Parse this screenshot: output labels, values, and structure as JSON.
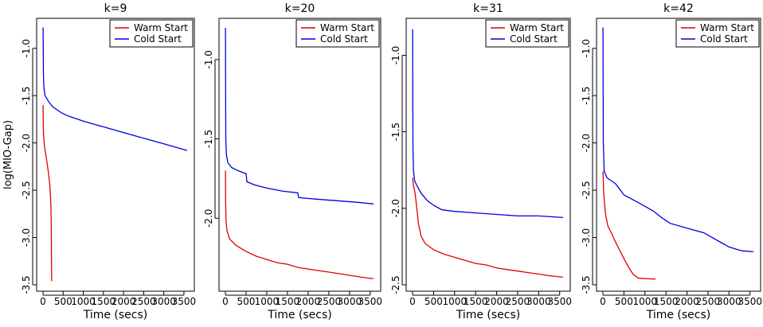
{
  "colors": {
    "warm": "#e00000",
    "cold": "#0000e0"
  },
  "chart_data": [
    {
      "type": "line",
      "title": "k=9",
      "xlabel": "Time (secs)",
      "ylabel": "log(MIO-Gap)",
      "xlim": [
        0,
        3600
      ],
      "ylim": [
        -3.5,
        -0.75
      ],
      "x_ticks": [
        0,
        500,
        1000,
        1500,
        2000,
        2500,
        3000,
        3500
      ],
      "y_ticks": [
        -3.5,
        -3.0,
        -2.5,
        -2.0,
        -1.5,
        -1.0
      ],
      "y_tick_labels": [
        "-3.5",
        "-3.0",
        "-2.5",
        "-2.0",
        "-1.5",
        "-1.0"
      ],
      "legend": [
        "Warm Start",
        "Cold Start"
      ],
      "legend_position": "top-right",
      "series": [
        {
          "name": "Warm Start",
          "color_key": "warm",
          "points": [
            [
              1,
              -1.6
            ],
            [
              5,
              -1.8
            ],
            [
              10,
              -1.9
            ],
            [
              40,
              -2.05
            ],
            [
              80,
              -2.15
            ],
            [
              130,
              -2.3
            ],
            [
              170,
              -2.45
            ],
            [
              195,
              -2.65
            ],
            [
              205,
              -2.9
            ],
            [
              210,
              -3.2
            ],
            [
              215,
              -3.46
            ]
          ]
        },
        {
          "name": "Cold Start",
          "color_key": "cold",
          "points": [
            [
              1,
              -0.78
            ],
            [
              5,
              -1.0
            ],
            [
              10,
              -1.25
            ],
            [
              20,
              -1.4
            ],
            [
              50,
              -1.5
            ],
            [
              150,
              -1.57
            ],
            [
              250,
              -1.62
            ],
            [
              350,
              -1.65
            ],
            [
              450,
              -1.68
            ],
            [
              600,
              -1.71
            ],
            [
              800,
              -1.74
            ],
            [
              1000,
              -1.77
            ],
            [
              1500,
              -1.83
            ],
            [
              2000,
              -1.89
            ],
            [
              2500,
              -1.95
            ],
            [
              3000,
              -2.01
            ],
            [
              3500,
              -2.07
            ],
            [
              3580,
              -2.08
            ]
          ]
        }
      ]
    },
    {
      "type": "line",
      "title": "k=20",
      "xlabel": "Time (secs)",
      "ylabel": "",
      "xlim": [
        0,
        3600
      ],
      "ylim": [
        -2.42,
        -0.78
      ],
      "x_ticks": [
        0,
        500,
        1000,
        1500,
        2000,
        2500,
        3000,
        3500
      ],
      "y_ticks": [
        -2.0,
        -1.5,
        -1.0
      ],
      "y_tick_labels": [
        "-2.0",
        "-1.5",
        "-1.0"
      ],
      "legend": [
        "Warm Start",
        "Cold Start"
      ],
      "legend_position": "top-right",
      "series": [
        {
          "name": "Warm Start",
          "color_key": "warm",
          "points": [
            [
              1,
              -1.7
            ],
            [
              5,
              -1.9
            ],
            [
              15,
              -2.02
            ],
            [
              40,
              -2.08
            ],
            [
              100,
              -2.13
            ],
            [
              250,
              -2.17
            ],
            [
              500,
              -2.21
            ],
            [
              750,
              -2.24
            ],
            [
              1000,
              -2.26
            ],
            [
              1250,
              -2.28
            ],
            [
              1500,
              -2.29
            ],
            [
              1750,
              -2.31
            ],
            [
              2000,
              -2.32
            ],
            [
              2250,
              -2.33
            ],
            [
              2500,
              -2.34
            ],
            [
              2750,
              -2.35
            ],
            [
              3000,
              -2.36
            ],
            [
              3250,
              -2.37
            ],
            [
              3500,
              -2.38
            ],
            [
              3580,
              -2.38
            ]
          ]
        },
        {
          "name": "Cold Start",
          "color_key": "cold",
          "points": [
            [
              1,
              -0.8
            ],
            [
              5,
              -1.2
            ],
            [
              10,
              -1.5
            ],
            [
              25,
              -1.6
            ],
            [
              60,
              -1.65
            ],
            [
              150,
              -1.68
            ],
            [
              300,
              -1.7
            ],
            [
              500,
              -1.72
            ],
            [
              520,
              -1.77
            ],
            [
              700,
              -1.79
            ],
            [
              1000,
              -1.81
            ],
            [
              1400,
              -1.83
            ],
            [
              1750,
              -1.84
            ],
            [
              1770,
              -1.87
            ],
            [
              2200,
              -1.88
            ],
            [
              2700,
              -1.89
            ],
            [
              3200,
              -1.9
            ],
            [
              3580,
              -1.91
            ]
          ]
        }
      ]
    },
    {
      "type": "line",
      "title": "k=31",
      "xlabel": "Time (secs)",
      "ylabel": "",
      "xlim": [
        0,
        3600
      ],
      "ylim": [
        -2.5,
        -0.8
      ],
      "x_ticks": [
        0,
        500,
        1000,
        1500,
        2000,
        2500,
        3000,
        3500
      ],
      "y_ticks": [
        -2.5,
        -2.0,
        -1.5,
        -1.0
      ],
      "y_tick_labels": [
        "-2.5",
        "-2.0",
        "-1.5",
        "-1.0"
      ],
      "legend": [
        "Warm Start",
        "Cold Start"
      ],
      "legend_position": "top-right",
      "series": [
        {
          "name": "Warm Start",
          "color_key": "warm",
          "points": [
            [
              1,
              -1.8
            ],
            [
              20,
              -1.85
            ],
            [
              60,
              -1.9
            ],
            [
              100,
              -2.0
            ],
            [
              140,
              -2.1
            ],
            [
              200,
              -2.18
            ],
            [
              300,
              -2.23
            ],
            [
              500,
              -2.27
            ],
            [
              750,
              -2.3
            ],
            [
              1000,
              -2.32
            ],
            [
              1250,
              -2.34
            ],
            [
              1500,
              -2.36
            ],
            [
              1750,
              -2.37
            ],
            [
              2000,
              -2.39
            ],
            [
              2250,
              -2.4
            ],
            [
              2500,
              -2.41
            ],
            [
              2750,
              -2.42
            ],
            [
              3000,
              -2.43
            ],
            [
              3250,
              -2.44
            ],
            [
              3580,
              -2.45
            ]
          ]
        },
        {
          "name": "Cold Start",
          "color_key": "cold",
          "points": [
            [
              1,
              -0.83
            ],
            [
              5,
              -1.3
            ],
            [
              10,
              -1.6
            ],
            [
              20,
              -1.75
            ],
            [
              50,
              -1.82
            ],
            [
              100,
              -1.85
            ],
            [
              200,
              -1.9
            ],
            [
              350,
              -1.95
            ],
            [
              500,
              -1.98
            ],
            [
              700,
              -2.01
            ],
            [
              1000,
              -2.02
            ],
            [
              1500,
              -2.03
            ],
            [
              2000,
              -2.04
            ],
            [
              2500,
              -2.05
            ],
            [
              3000,
              -2.05
            ],
            [
              3580,
              -2.06
            ]
          ]
        }
      ]
    },
    {
      "type": "line",
      "title": "k=42",
      "xlabel": "Time (secs)",
      "ylabel": "",
      "xlim": [
        0,
        3600
      ],
      "ylim": [
        -3.5,
        -0.75
      ],
      "x_ticks": [
        0,
        500,
        1000,
        1500,
        2000,
        2500,
        3000,
        3500
      ],
      "y_ticks": [
        -3.5,
        -3.0,
        -2.5,
        -2.0,
        -1.5,
        -1.0
      ],
      "y_tick_labels": [
        "-3.5",
        "-3.0",
        "-2.5",
        "-2.0",
        "-1.5",
        "-1.0"
      ],
      "legend": [
        "Warm Start",
        "Cold Start"
      ],
      "legend_position": "top-right",
      "series": [
        {
          "name": "Warm Start",
          "color_key": "warm",
          "points": [
            [
              1,
              -2.3
            ],
            [
              20,
              -2.55
            ],
            [
              60,
              -2.75
            ],
            [
              120,
              -2.88
            ],
            [
              200,
              -2.95
            ],
            [
              280,
              -3.03
            ],
            [
              360,
              -3.1
            ],
            [
              440,
              -3.17
            ],
            [
              520,
              -3.24
            ],
            [
              620,
              -3.32
            ],
            [
              720,
              -3.39
            ],
            [
              850,
              -3.43
            ],
            [
              1250,
              -3.44
            ]
          ]
        },
        {
          "name": "Cold Start",
          "color_key": "cold",
          "points": [
            [
              1,
              -0.78
            ],
            [
              5,
              -1.5
            ],
            [
              10,
              -2.0
            ],
            [
              30,
              -2.3
            ],
            [
              100,
              -2.37
            ],
            [
              300,
              -2.43
            ],
            [
              500,
              -2.55
            ],
            [
              800,
              -2.62
            ],
            [
              1000,
              -2.67
            ],
            [
              1200,
              -2.72
            ],
            [
              1400,
              -2.79
            ],
            [
              1600,
              -2.85
            ],
            [
              2000,
              -2.9
            ],
            [
              2400,
              -2.95
            ],
            [
              2800,
              -3.05
            ],
            [
              3000,
              -3.1
            ],
            [
              3300,
              -3.14
            ],
            [
              3580,
              -3.15
            ]
          ]
        }
      ]
    }
  ]
}
